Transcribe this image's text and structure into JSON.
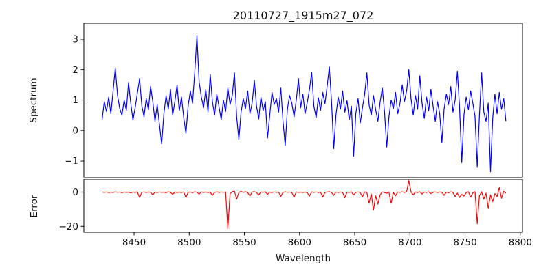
{
  "figure": {
    "title": "20110727_1915m27_072",
    "xlabel": "Wavelength",
    "background": "#ffffff",
    "spine_color": "#000000"
  },
  "chart_data": [
    {
      "id": "spectrum",
      "type": "line",
      "ylabel": "Spectrum",
      "color": "#0000ff",
      "x_start": 8421,
      "x_step": 2,
      "xlim": [
        8404.5,
        8802
      ],
      "ylim": [
        -1.54,
        3.52
      ],
      "yticks": [
        3,
        2,
        1,
        0,
        -1
      ],
      "grid": false,
      "values": [
        0.35,
        0.95,
        0.62,
        1.1,
        0.55,
        1.3,
        2.05,
        1.15,
        0.72,
        0.5,
        1.0,
        0.66,
        1.58,
        0.9,
        0.34,
        0.75,
        1.22,
        1.7,
        0.82,
        0.45,
        1.05,
        0.68,
        1.45,
        0.95,
        0.3,
        0.85,
        0.2,
        -0.45,
        0.55,
        1.15,
        0.7,
        1.35,
        0.5,
        0.95,
        1.5,
        0.65,
        1.1,
        0.42,
        -0.1,
        0.8,
        1.3,
        0.9,
        1.9,
        3.12,
        1.6,
        1.1,
        0.75,
        1.35,
        0.6,
        1.85,
        0.95,
        0.5,
        1.2,
        0.78,
        0.35,
        1.0,
        0.62,
        1.4,
        0.85,
        1.15,
        1.9,
        0.45,
        -0.3,
        0.6,
        1.05,
        0.72,
        1.3,
        0.55,
        0.9,
        1.65,
        0.8,
        0.38,
        1.1,
        0.65,
        0.95,
        -0.25,
        0.5,
        1.25,
        0.85,
        1.05,
        0.6,
        1.4,
        0.3,
        -0.5,
        0.7,
        1.15,
        0.9,
        0.45,
        1.0,
        1.7,
        0.75,
        1.2,
        0.55,
        0.92,
        1.35,
        1.92,
        0.8,
        0.42,
        1.08,
        0.66,
        1.25,
        0.88,
        1.45,
        2.1,
        0.95,
        -0.6,
        0.5,
        1.1,
        0.7,
        1.3,
        0.6,
        0.98,
        0.35,
        0.8,
        -0.85,
        0.55,
        1.05,
        0.25,
        0.75,
        1.2,
        1.9,
        0.85,
        0.5,
        1.15,
        0.68,
        0.3,
        0.95,
        1.4,
        0.6,
        -0.55,
        0.45,
        1.0,
        0.72,
        1.25,
        0.55,
        0.88,
        1.5,
        0.95,
        1.3,
        2.0,
        1.05,
        0.5,
        1.15,
        0.7,
        1.8,
        0.9,
        0.4,
        1.1,
        0.65,
        1.35,
        0.8,
        0.3,
        0.95,
        0.55,
        -0.4,
        0.7,
        1.2,
        0.85,
        1.45,
        0.6,
        1.0,
        1.95,
        0.75,
        -1.05,
        0.5,
        1.1,
        0.68,
        1.3,
        0.9,
        0.45,
        -1.2,
        0.5,
        1.9,
        0.6,
        0.3,
        0.9,
        -1.35,
        0.4,
        1.2,
        0.55,
        1.25,
        0.7,
        1.05,
        0.3
      ]
    },
    {
      "id": "error",
      "type": "line",
      "ylabel": "Error",
      "xlabel": "Wavelength",
      "color": "#ff0000",
      "x_start": 8421,
      "x_step": 2,
      "xlim": [
        8404.5,
        8802
      ],
      "ylim": [
        -23.5,
        7.5
      ],
      "yticks": [
        0,
        -20
      ],
      "xticks": [
        8450,
        8500,
        8550,
        8600,
        8650,
        8700,
        8750,
        8800
      ],
      "grid": false,
      "values": [
        0.1,
        -0.1,
        0.15,
        -0.2,
        0.05,
        -0.15,
        0.2,
        -0.05,
        0.1,
        -0.25,
        0.15,
        -0.1,
        0.05,
        -0.3,
        0.1,
        -0.15,
        0.2,
        -3.0,
        -0.1,
        0.15,
        -0.2,
        0.1,
        -0.05,
        -1.5,
        0.1,
        -0.2,
        0.15,
        -0.1,
        0.05,
        -0.25,
        0.2,
        -0.1,
        -1.2,
        0.1,
        -0.15,
        0.05,
        -0.2,
        0.15,
        -3.1,
        -0.1,
        0.1,
        -0.25,
        0.2,
        -0.05,
        -1.0,
        0.15,
        -0.15,
        0.1,
        -0.2,
        0.05,
        -1.8,
        -0.1,
        0.2,
        -0.15,
        0.1,
        -0.05,
        0.15,
        -21.5,
        -0.8,
        0.3,
        0.6,
        -4.0,
        -0.2,
        0.4,
        -0.1,
        0.25,
        -0.15,
        -2.2,
        0.1,
        0.3,
        -0.2,
        -1.5,
        0.15,
        -0.1,
        0.2,
        -1.2,
        0.05,
        -0.2,
        0.15,
        -0.1,
        0.1,
        -2.4,
        -0.15,
        0.2,
        -0.05,
        0.1,
        -0.2,
        -2.8,
        0.15,
        -0.1,
        0.05,
        -0.15,
        0.1,
        -0.25,
        -2.2,
        0.2,
        -0.1,
        0.15,
        -0.2,
        0.05,
        -2.8,
        -0.15,
        0.1,
        0.25,
        -0.1,
        -1.8,
        0.15,
        -0.2,
        0.1,
        -0.05,
        -3.2,
        0.1,
        -0.15,
        0.2,
        -1.5,
        -0.1,
        0.15,
        -0.25,
        -2.6,
        0.1,
        -0.15,
        -6.5,
        -1.0,
        -10.5,
        -2.0,
        -7.0,
        -1.5,
        0.15,
        -0.2,
        -0.6,
        0.1,
        -6.5,
        -0.2,
        -2.0,
        0.15,
        -0.1,
        0.2,
        -0.15,
        0.3,
        6.8,
        0.2,
        -1.5,
        0.1,
        -0.2,
        0.25,
        -1.0,
        0.1,
        -0.15,
        0.2,
        -0.8,
        -0.1,
        0.15,
        -0.2,
        0.1,
        -0.05,
        -1.8,
        0.1,
        -0.3,
        0.2,
        -0.15,
        -2.5,
        -0.5,
        -3.0,
        -1.2,
        -2.2,
        -0.3,
        0.2,
        -2.8,
        -0.4,
        0.3,
        -18.5,
        -2.0,
        0.2,
        -4.0,
        -0.5,
        -9.5,
        -1.5,
        -5.5,
        -0.8,
        -2.5,
        2.8,
        -3.5,
        0.5,
        -0.5
      ]
    }
  ]
}
